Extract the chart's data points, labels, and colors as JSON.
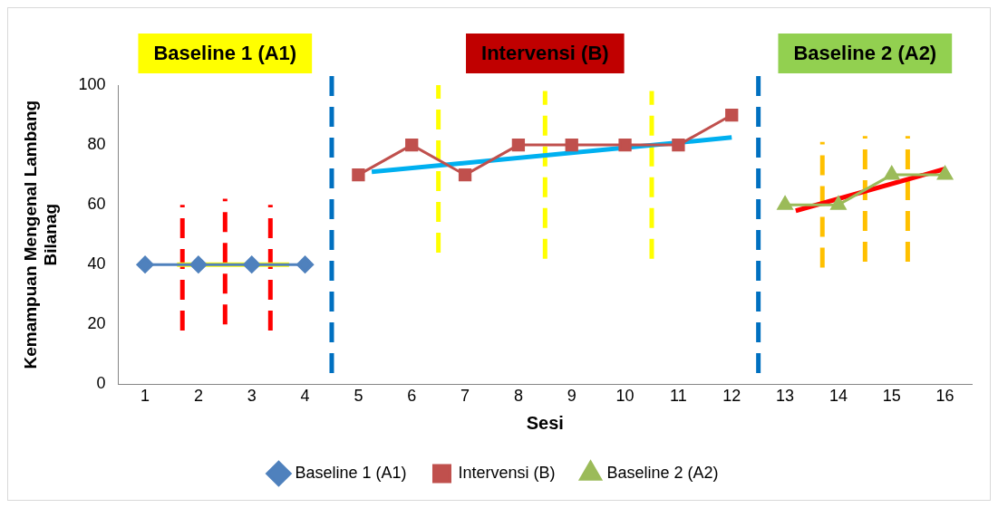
{
  "chart_data": {
    "type": "line",
    "xlabel": "Sesi",
    "ylabel": "Kemampuan Mengenal Lambang Bilanag",
    "xlim": [
      0.5,
      16.5
    ],
    "xticks": [
      1,
      2,
      3,
      4,
      5,
      6,
      7,
      8,
      9,
      10,
      11,
      12,
      13,
      14,
      15,
      16
    ],
    "ylim": [
      0,
      100
    ],
    "yticks": [
      0,
      20,
      40,
      60,
      80,
      100
    ],
    "grid": false,
    "legend": "bottom",
    "annotations": [
      "Baseline 1 (A1)",
      "Intervensi (B)",
      "Baseline 2 (A2)"
    ],
    "ref_lines": [
      {
        "axis": "x",
        "value": 4.5,
        "color": "#0070c0",
        "line_style": "dashed"
      },
      {
        "axis": "x",
        "value": 12.5,
        "color": "#0070c0",
        "line_style": "dashed"
      }
    ],
    "series": [
      {
        "name": "Baseline 1 (A1)",
        "color": "#4f81bd",
        "marker": "diamond",
        "x": [
          1,
          2,
          3,
          4
        ],
        "values": [
          40,
          40,
          40,
          40
        ]
      },
      {
        "name": "Intervensi (B)",
        "color": "#c0504d",
        "marker": "square",
        "x": [
          5,
          6,
          7,
          8,
          9,
          10,
          11,
          12
        ],
        "values": [
          70,
          80,
          70,
          80,
          80,
          80,
          80,
          90
        ]
      },
      {
        "name": "Baseline 2 (A2)",
        "color": "#9bbb59",
        "marker": "triangle",
        "x": [
          13,
          14,
          15,
          16
        ],
        "values": [
          60,
          60,
          70,
          70
        ]
      },
      {
        "color": "#ffff00",
        "marker": "none",
        "x": [
          1.6,
          3.7
        ],
        "values": [
          40,
          40
        ]
      },
      {
        "color": "#00b0f0",
        "marker": "none",
        "x": [
          5.25,
          12
        ],
        "values": [
          71,
          82.5
        ]
      },
      {
        "color": "#ff0000",
        "marker": "none",
        "x": [
          13.2,
          16
        ],
        "values": [
          58,
          72
        ]
      },
      {
        "color": "#ff0000",
        "marker": "none",
        "line_style": "dashed",
        "x": [
          1.7,
          1.7
        ],
        "values": [
          18,
          60
        ]
      },
      {
        "color": "#ff0000",
        "marker": "none",
        "line_style": "dashed",
        "x": [
          2.5,
          2.5
        ],
        "values": [
          20,
          62
        ]
      },
      {
        "color": "#ff0000",
        "marker": "none",
        "line_style": "dashed",
        "x": [
          3.35,
          3.35
        ],
        "values": [
          18,
          60
        ]
      },
      {
        "color": "#ffff00",
        "marker": "none",
        "line_style": "dashed",
        "x": [
          6.5,
          6.5
        ],
        "values": [
          44,
          100
        ]
      },
      {
        "color": "#ffff00",
        "marker": "none",
        "line_style": "dashed",
        "x": [
          8.5,
          8.5
        ],
        "values": [
          42,
          98
        ]
      },
      {
        "color": "#ffff00",
        "marker": "none",
        "line_style": "dashed",
        "x": [
          10.5,
          10.5
        ],
        "values": [
          42,
          98
        ]
      },
      {
        "color": "#ffc000",
        "marker": "none",
        "line_style": "dashed",
        "x": [
          13.7,
          13.7
        ],
        "values": [
          39,
          81
        ]
      },
      {
        "color": "#ffc000",
        "marker": "none",
        "line_style": "dashed",
        "x": [
          14.5,
          14.5
        ],
        "values": [
          41,
          83
        ]
      },
      {
        "color": "#ffc000",
        "marker": "none",
        "line_style": "dashed",
        "x": [
          15.3,
          15.3
        ],
        "values": [
          41,
          83
        ]
      }
    ]
  }
}
